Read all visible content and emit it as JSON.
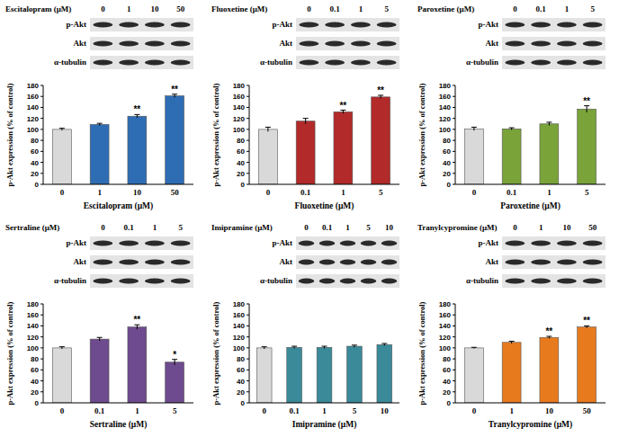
{
  "chart_data": [
    {
      "type": "bar",
      "categories": [
        "0",
        "1",
        "10",
        "50"
      ],
      "values": [
        100,
        109,
        124,
        161
      ],
      "errors": [
        2,
        2,
        3,
        3
      ],
      "annotations": [
        null,
        null,
        "**",
        "**"
      ],
      "colors": [
        "#d9d9d9",
        "#2e6db4",
        "#2e6db4",
        "#2e6db4"
      ],
      "x_label": "Escitalopram (μM)",
      "y_label": "p-Akt expression (% of control)",
      "ylim": [
        0,
        180
      ],
      "yticks": [
        0,
        20,
        40,
        60,
        80,
        100,
        120,
        140,
        160,
        180
      ],
      "blot": {
        "treatment": "Escitalopram (μM)",
        "doses": [
          "0",
          "1",
          "10",
          "50"
        ],
        "bands": [
          "p-Akt",
          "Akt",
          "α-tubulin"
        ]
      }
    },
    {
      "type": "bar",
      "categories": [
        "0",
        "0.1",
        "1",
        "5"
      ],
      "values": [
        100,
        115,
        132,
        159
      ],
      "errors": [
        4,
        5,
        3,
        3
      ],
      "annotations": [
        null,
        null,
        "**",
        "**"
      ],
      "colors": [
        "#d9d9d9",
        "#b22a2a",
        "#b22a2a",
        "#b22a2a"
      ],
      "x_label": "Fluoxetine (μM)",
      "y_label": "p-Akt expression (% of control)",
      "ylim": [
        0,
        180
      ],
      "yticks": [
        0,
        20,
        40,
        60,
        80,
        100,
        120,
        140,
        160,
        180
      ],
      "blot": {
        "treatment": "Fluoxetine (μM)",
        "doses": [
          "0",
          "0.1",
          "1",
          "5"
        ],
        "bands": [
          "p-Akt",
          "Akt",
          "α-tubulin"
        ]
      }
    },
    {
      "type": "bar",
      "categories": [
        "0",
        "0.1",
        "1",
        "5"
      ],
      "values": [
        101,
        101,
        110,
        137
      ],
      "errors": [
        3,
        2,
        3,
        6
      ],
      "annotations": [
        null,
        null,
        null,
        "**"
      ],
      "colors": [
        "#d9d9d9",
        "#7aa33a",
        "#7aa33a",
        "#7aa33a"
      ],
      "x_label": "Paroxetine (μM)",
      "y_label": "p-Akt expression (% of control)",
      "ylim": [
        0,
        180
      ],
      "yticks": [
        0,
        20,
        40,
        60,
        80,
        100,
        120,
        140,
        160,
        180
      ],
      "blot": {
        "treatment": "Paroxetine (μM)",
        "doses": [
          "0",
          "0.1",
          "1",
          "5"
        ],
        "bands": [
          "p-Akt",
          "Akt",
          "α-tubulin"
        ]
      }
    },
    {
      "type": "bar",
      "categories": [
        "0",
        "0.1",
        "1",
        "5"
      ],
      "values": [
        100,
        116,
        138,
        74
      ],
      "errors": [
        2,
        3,
        4,
        5
      ],
      "annotations": [
        null,
        null,
        "**",
        "*"
      ],
      "colors": [
        "#d9d9d9",
        "#6e4a8e",
        "#6e4a8e",
        "#6e4a8e"
      ],
      "x_label": "Sertraline (μM)",
      "y_label": "p-Akt expression (% of control)",
      "ylim": [
        0,
        180
      ],
      "yticks": [
        0,
        20,
        40,
        60,
        80,
        100,
        120,
        140,
        160,
        180
      ],
      "blot": {
        "treatment": "Sertraline (μM)",
        "doses": [
          "0",
          "0.1",
          "1",
          "5"
        ],
        "bands": [
          "p-Akt",
          "Akt",
          "α-tubulin"
        ]
      }
    },
    {
      "type": "bar",
      "categories": [
        "0",
        "0.1",
        "1",
        "5",
        "10"
      ],
      "values": [
        100,
        101,
        101,
        103,
        106
      ],
      "errors": [
        2,
        2,
        2,
        2,
        2
      ],
      "annotations": [
        null,
        null,
        null,
        null,
        null
      ],
      "colors": [
        "#d9d9d9",
        "#3a8a9a",
        "#3a8a9a",
        "#3a8a9a",
        "#3a8a9a"
      ],
      "x_label": "Imipramine (μM)",
      "y_label": "p-Akt expression (% of control)",
      "ylim": [
        0,
        180
      ],
      "yticks": [
        0,
        20,
        40,
        60,
        80,
        100,
        120,
        140,
        160,
        180
      ],
      "blot": {
        "treatment": "Imipramine (μM)",
        "doses": [
          "0",
          "0.1",
          "1",
          "5",
          "10"
        ],
        "bands": [
          "p-Akt",
          "Akt",
          "α-tubulin"
        ]
      }
    },
    {
      "type": "bar",
      "categories": [
        "0",
        "1",
        "10",
        "50"
      ],
      "values": [
        100,
        110,
        119,
        138
      ],
      "errors": [
        1,
        2,
        2,
        2
      ],
      "annotations": [
        null,
        null,
        "**",
        "**"
      ],
      "colors": [
        "#d9d9d9",
        "#e87a1e",
        "#e87a1e",
        "#e87a1e"
      ],
      "x_label": "Tranylcypromine (μM)",
      "y_label": "p-Akt expression (% of control)",
      "ylim": [
        0,
        180
      ],
      "yticks": [
        0,
        20,
        40,
        60,
        80,
        100,
        120,
        140,
        160,
        180
      ],
      "blot": {
        "treatment": "Tranylcypromine (μM)",
        "doses": [
          "0",
          "1",
          "10",
          "50"
        ],
        "bands": [
          "p-Akt",
          "Akt",
          "α-tubulin"
        ]
      }
    }
  ]
}
